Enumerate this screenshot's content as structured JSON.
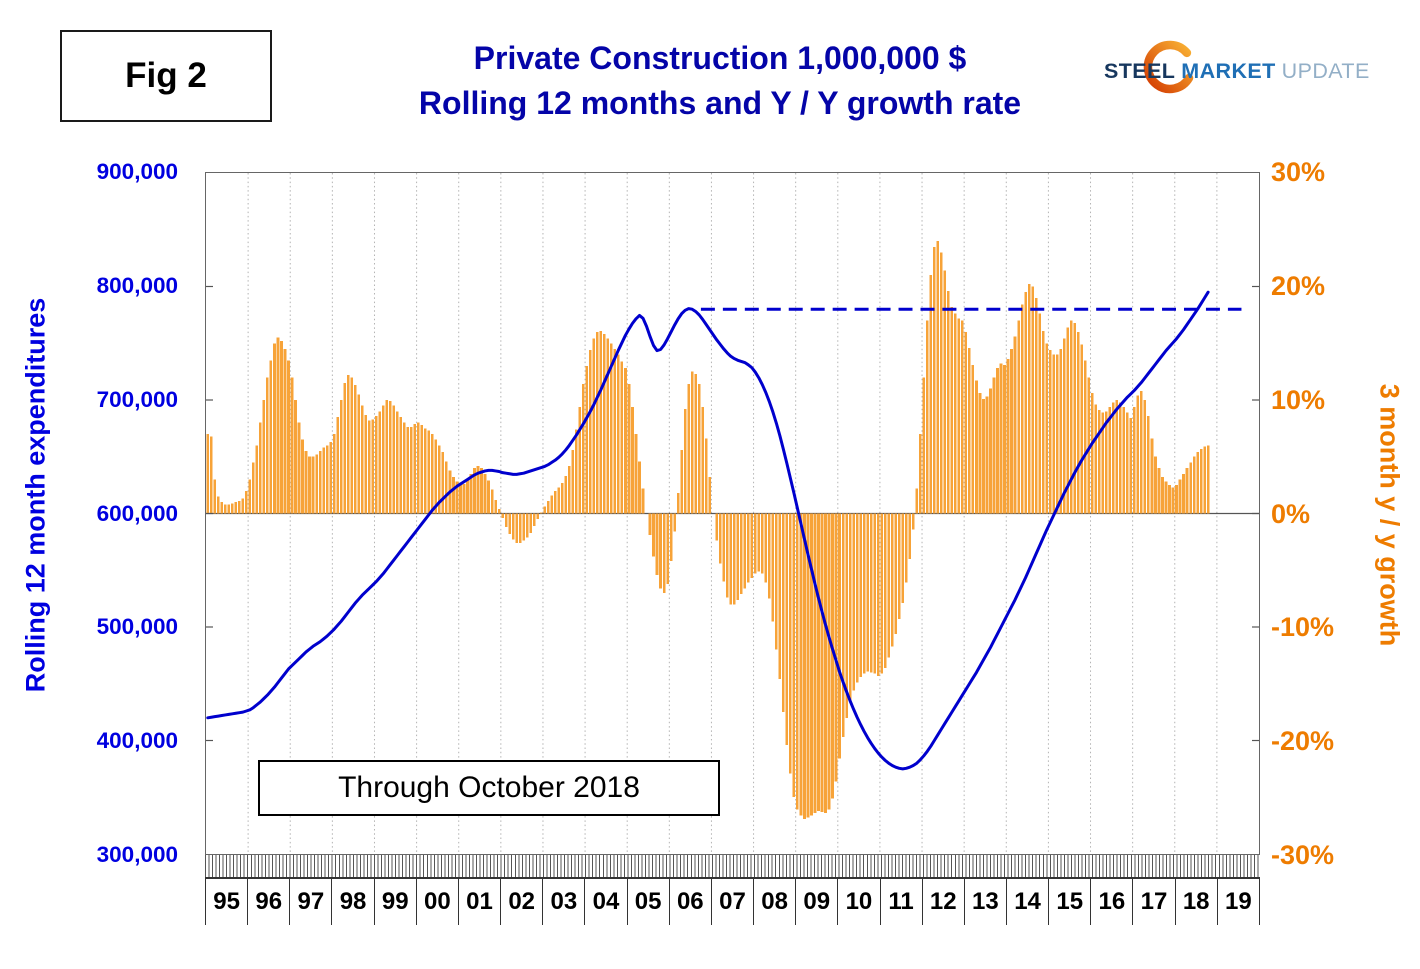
{
  "figure_label": "Fig 2",
  "title": {
    "line1": "Private Construction 1,000,000 $",
    "line2": "Rolling 12 months and Y / Y growth rate"
  },
  "logo": {
    "steel": "STEEL",
    "market": "MARKET",
    "update": "UPDATE"
  },
  "annotation_box": "Through October 2018",
  "left_axis": {
    "title": "Rolling 12 month expenditures",
    "color": "#0000e0",
    "ticks": [
      "900,000",
      "800,000",
      "700,000",
      "600,000",
      "500,000",
      "400,000",
      "300,000"
    ]
  },
  "right_axis": {
    "title": "3 month y / y growth",
    "color": "#ee7c00",
    "ticks": [
      "30%",
      "20%",
      "10%",
      "0%",
      "-10%",
      "-20%",
      "-30%"
    ]
  },
  "x_axis": {
    "years": [
      "95",
      "96",
      "97",
      "98",
      "99",
      "00",
      "01",
      "02",
      "03",
      "04",
      "05",
      "06",
      "07",
      "08",
      "09",
      "10",
      "11",
      "12",
      "13",
      "14",
      "15",
      "16",
      "17",
      "18",
      "19"
    ]
  },
  "chart_data": {
    "type": "combo",
    "x_range_years": [
      1995,
      2020
    ],
    "left_axis_range": [
      300000,
      900000
    ],
    "right_axis_range": [
      -30,
      30
    ],
    "grid": "vertical-dotted-per-year",
    "reference_line": {
      "style": "dashed",
      "axis": "left",
      "value": 780000,
      "from": "2006-10",
      "to": "2019-08",
      "color": "#0000cd"
    },
    "series": [
      {
        "name": "3 month y / y growth",
        "type": "bar",
        "axis": "right",
        "unit": "%",
        "color": "#f7a338",
        "start": "1995-01",
        "end": "2018-10",
        "frequency": "monthly",
        "values": [
          7.0,
          6.8,
          3.0,
          1.5,
          1.0,
          0.8,
          0.8,
          0.9,
          1.0,
          1.1,
          1.3,
          2.0,
          3.0,
          4.5,
          6.0,
          8.0,
          10.0,
          12.0,
          13.5,
          15.0,
          15.5,
          15.2,
          14.5,
          13.5,
          12.0,
          10.0,
          8.0,
          6.5,
          5.5,
          5.0,
          5.0,
          5.2,
          5.5,
          5.8,
          6.0,
          6.3,
          7.0,
          8.5,
          10.0,
          11.5,
          12.2,
          12.0,
          11.3,
          10.5,
          9.5,
          8.7,
          8.2,
          8.3,
          8.6,
          9.0,
          9.5,
          10.0,
          9.9,
          9.5,
          9.0,
          8.5,
          8.0,
          7.6,
          7.6,
          7.9,
          8.0,
          7.8,
          7.5,
          7.3,
          7.0,
          6.5,
          6.0,
          5.4,
          4.6,
          3.8,
          3.2,
          2.8,
          2.5,
          2.6,
          3.0,
          3.5,
          4.0,
          4.2,
          4.0,
          3.5,
          2.9,
          2.1,
          1.2,
          0.4,
          -0.4,
          -1.2,
          -1.8,
          -2.3,
          -2.6,
          -2.6,
          -2.4,
          -2.1,
          -1.7,
          -1.1,
          -0.5,
          0.1,
          0.6,
          1.1,
          1.6,
          2.0,
          2.3,
          2.7,
          3.3,
          4.2,
          5.6,
          7.4,
          9.4,
          11.4,
          13.0,
          14.4,
          15.4,
          16.0,
          16.1,
          15.8,
          15.4,
          15.0,
          14.5,
          14.0,
          13.4,
          12.8,
          11.4,
          9.4,
          7.0,
          4.6,
          2.2,
          0.0,
          -1.9,
          -3.8,
          -5.4,
          -6.6,
          -7.0,
          -6.2,
          -4.2,
          -1.6,
          1.8,
          5.6,
          9.2,
          11.4,
          12.5,
          12.3,
          11.4,
          9.4,
          6.6,
          3.2,
          0.0,
          -2.4,
          -4.4,
          -6.0,
          -7.4,
          -8.0,
          -8.0,
          -7.6,
          -7.1,
          -6.6,
          -6.1,
          -5.7,
          -5.3,
          -5.1,
          -5.3,
          -6.1,
          -7.5,
          -9.5,
          -12.0,
          -14.6,
          -17.5,
          -20.4,
          -22.9,
          -25.0,
          -26.1,
          -26.6,
          -26.9,
          -26.8,
          -26.6,
          -26.4,
          -26.2,
          -26.3,
          -26.4,
          -26.1,
          -25.1,
          -23.6,
          -21.6,
          -19.7,
          -18.0,
          -16.6,
          -15.6,
          -14.9,
          -14.4,
          -14.1,
          -13.9,
          -14.0,
          -14.1,
          -14.3,
          -14.1,
          -13.6,
          -12.7,
          -11.7,
          -10.6,
          -9.3,
          -7.9,
          -6.1,
          -4.0,
          -1.4,
          2.2,
          7.0,
          12.0,
          17.0,
          21.0,
          23.5,
          24.0,
          23.0,
          21.4,
          19.6,
          18.2,
          17.6,
          17.2,
          17.0,
          16.0,
          14.6,
          13.1,
          11.7,
          10.6,
          10.1,
          10.3,
          11.0,
          12.0,
          12.8,
          13.2,
          13.1,
          13.6,
          14.5,
          15.6,
          17.0,
          18.4,
          19.5,
          20.2,
          20.0,
          19.0,
          17.6,
          16.1,
          15.0,
          14.4,
          14.0,
          14.0,
          14.5,
          15.4,
          16.4,
          17.0,
          16.8,
          16.0,
          14.9,
          13.5,
          12.0,
          10.6,
          9.6,
          9.1,
          8.9,
          9.0,
          9.4,
          9.8,
          10.0,
          9.8,
          9.4,
          8.9,
          8.4,
          9.4,
          10.4,
          10.8,
          10.0,
          8.6,
          6.6,
          5.0,
          4.0,
          3.2,
          2.8,
          2.5,
          2.3,
          2.5,
          3.0,
          3.5,
          4.0,
          4.5,
          5.0,
          5.4,
          5.7,
          5.9,
          6.0
        ]
      },
      {
        "name": "Rolling 12 month expenditures",
        "type": "line",
        "axis": "left",
        "unit": "1,000,000 $",
        "color": "#0000cd",
        "start": "1995-01",
        "end": "2018-10",
        "frequency": "monthly",
        "values": [
          420000,
          420500,
          421000,
          421500,
          422000,
          422500,
          423000,
          423500,
          424000,
          424500,
          425000,
          426000,
          427000,
          429000,
          431500,
          434000,
          437000,
          440000,
          443500,
          447000,
          451000,
          455000,
          459000,
          463000,
          466000,
          469000,
          472000,
          475000,
          478000,
          480500,
          483000,
          485000,
          487000,
          489500,
          492000,
          495000,
          498000,
          501500,
          505000,
          509000,
          513000,
          517000,
          521000,
          524500,
          528000,
          531000,
          534000,
          537000,
          540000,
          543500,
          547000,
          551000,
          555000,
          559000,
          563000,
          567000,
          571000,
          575000,
          579000,
          583000,
          587000,
          591000,
          595000,
          599000,
          603000,
          606500,
          610000,
          613000,
          616000,
          619000,
          621500,
          624000,
          626000,
          628000,
          630000,
          632000,
          634000,
          635500,
          636500,
          637500,
          638000,
          638000,
          637500,
          637000,
          636000,
          635500,
          635000,
          634500,
          634500,
          635000,
          635500,
          636500,
          637500,
          638500,
          639500,
          640500,
          641500,
          643000,
          645000,
          647000,
          649500,
          652500,
          656000,
          660000,
          664500,
          669000,
          674000,
          679000,
          684500,
          690000,
          696000,
          702500,
          709000,
          716000,
          723000,
          730000,
          737000,
          744000,
          750500,
          757000,
          762500,
          767500,
          771500,
          774500,
          772000,
          765000,
          756000,
          748000,
          743500,
          744500,
          748500,
          754000,
          760000,
          766000,
          771500,
          776000,
          779000,
          780500,
          780000,
          778000,
          775000,
          771000,
          766500,
          762000,
          757500,
          753000,
          749000,
          745000,
          741500,
          738500,
          736500,
          735000,
          734000,
          733000,
          731000,
          728500,
          724500,
          719500,
          713500,
          706500,
          698500,
          689500,
          679500,
          668500,
          656500,
          644000,
          631000,
          618000,
          604500,
          591000,
          577500,
          564000,
          551000,
          538000,
          525500,
          513500,
          502000,
          491000,
          480500,
          470500,
          460500,
          451500,
          443000,
          435000,
          427500,
          420500,
          414000,
          408000,
          402500,
          397500,
          393000,
          389000,
          385500,
          382500,
          380000,
          378000,
          376500,
          375500,
          375000,
          375500,
          376500,
          378000,
          380000,
          383000,
          386500,
          390500,
          395000,
          400000,
          405000,
          410000,
          415000,
          420000,
          425000,
          430000,
          435000,
          440000,
          445000,
          450000,
          455000,
          460000,
          465500,
          471000,
          476500,
          482000,
          488000,
          494000,
          500000,
          506000,
          512000,
          518000,
          524000,
          530500,
          537000,
          543500,
          550500,
          557500,
          564500,
          571500,
          578500,
          585500,
          592000,
          598500,
          605000,
          611500,
          618000,
          624000,
          630000,
          636000,
          641500,
          647000,
          652000,
          657000,
          662000,
          666500,
          671000,
          675500,
          680000,
          684000,
          688000,
          692000,
          695500,
          699000,
          702500,
          705500,
          708500,
          712000,
          715500,
          719500,
          723500,
          727500,
          731500,
          735500,
          739500,
          743500,
          747000,
          750500,
          754000,
          758000,
          762000,
          766500,
          771000,
          775500,
          780000,
          785000,
          790000,
          795000
        ]
      }
    ]
  }
}
